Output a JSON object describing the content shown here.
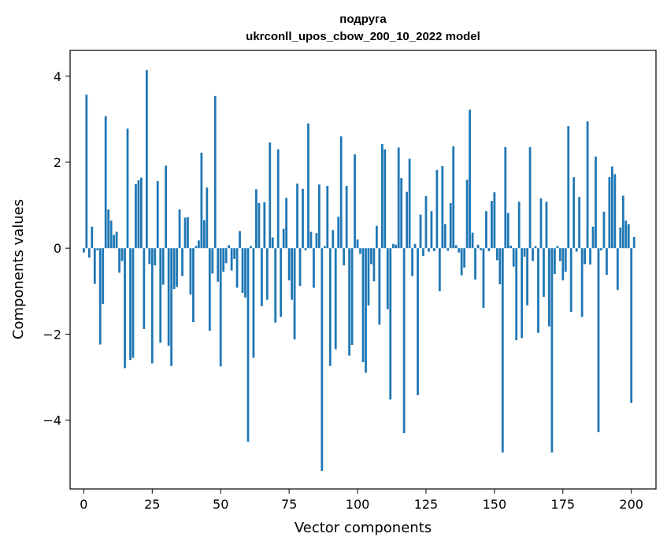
{
  "chart_data": {
    "type": "bar",
    "title": "подруга",
    "subtitle": "ukrconll_upos_cbow_200_10_2022 model",
    "xlabel": "Vector components",
    "ylabel": "Components values",
    "xlim": [
      -5,
      209
    ],
    "ylim": [
      -5.6,
      4.6
    ],
    "xticks": [
      0,
      25,
      50,
      75,
      100,
      125,
      150,
      175,
      200
    ],
    "yticks": [
      -4,
      -2,
      0,
      2,
      4
    ],
    "xtick_labels": [
      "0",
      "25",
      "50",
      "75",
      "100",
      "125",
      "150",
      "175",
      "200"
    ],
    "ytick_labels": [
      "−4",
      "−2",
      "0",
      "2",
      "4"
    ],
    "grid": false,
    "bar_color": "#1f77b4",
    "values": [
      -0.1,
      3.57,
      -0.22,
      0.5,
      -0.83,
      -0.05,
      -2.24,
      -1.3,
      3.07,
      0.9,
      0.64,
      0.31,
      0.38,
      -0.57,
      -0.3,
      -2.79,
      2.78,
      -2.6,
      -2.55,
      1.49,
      1.58,
      1.64,
      -1.88,
      4.14,
      -0.37,
      -2.68,
      -0.4,
      1.56,
      -2.2,
      -0.85,
      1.92,
      -2.27,
      -2.74,
      -0.95,
      -0.9,
      0.9,
      -0.65,
      0.71,
      0.72,
      -1.08,
      -1.72,
      0.05,
      0.18,
      2.22,
      0.65,
      1.41,
      -1.92,
      -0.59,
      3.54,
      -0.78,
      -2.75,
      -0.55,
      -0.35,
      0.07,
      -0.52,
      -0.25,
      -0.92,
      0.4,
      -1.04,
      -1.15,
      -4.5,
      0.05,
      -2.55,
      1.37,
      1.05,
      -1.35,
      1.07,
      -1.2,
      2.46,
      0.25,
      -1.73,
      2.3,
      -1.6,
      0.45,
      1.17,
      -0.75,
      -1.2,
      -2.12,
      1.5,
      -0.88,
      1.38,
      -0.05,
      2.9,
      0.38,
      -0.92,
      0.35,
      1.48,
      -5.18,
      0.05,
      1.45,
      -2.74,
      0.42,
      -2.35,
      0.73,
      2.6,
      -0.4,
      1.45,
      -2.5,
      -2.25,
      2.18,
      0.2,
      -0.13,
      -2.65,
      -2.9,
      -1.33,
      -0.37,
      -0.77,
      0.52,
      -1.78,
      2.42,
      2.3,
      -1.42,
      -3.52,
      0.1,
      0.08,
      2.34,
      1.63,
      -4.3,
      1.31,
      2.08,
      -0.65,
      0.1,
      -3.42,
      0.78,
      -0.18,
      1.21,
      -0.08,
      0.86,
      -0.07,
      1.82,
      -1.0,
      1.91,
      0.56,
      -0.06,
      1.05,
      2.37,
      0.07,
      -0.1,
      -0.63,
      -0.45,
      1.59,
      3.22,
      0.36,
      -0.73,
      0.08,
      -0.05,
      -1.39,
      0.86,
      -0.07,
      1.1,
      1.3,
      -0.28,
      -0.84,
      -4.75,
      2.35,
      0.82,
      0.06,
      -0.43,
      -2.14,
      1.08,
      -2.09,
      -0.2,
      -1.33,
      2.35,
      -0.3,
      0.05,
      -1.97,
      1.16,
      -1.13,
      1.08,
      -1.82,
      -4.75,
      -0.6,
      0.05,
      -0.3,
      -0.75,
      -0.55,
      2.84,
      -1.48,
      1.65,
      -0.08,
      1.19,
      -1.6,
      -0.37,
      2.95,
      -0.38,
      0.5,
      2.13,
      -4.28,
      -0.05,
      0.85,
      -0.62,
      1.65,
      1.9,
      1.72,
      -0.97,
      0.48,
      1.22,
      0.64,
      0.56,
      -3.6,
      0.26
    ]
  }
}
